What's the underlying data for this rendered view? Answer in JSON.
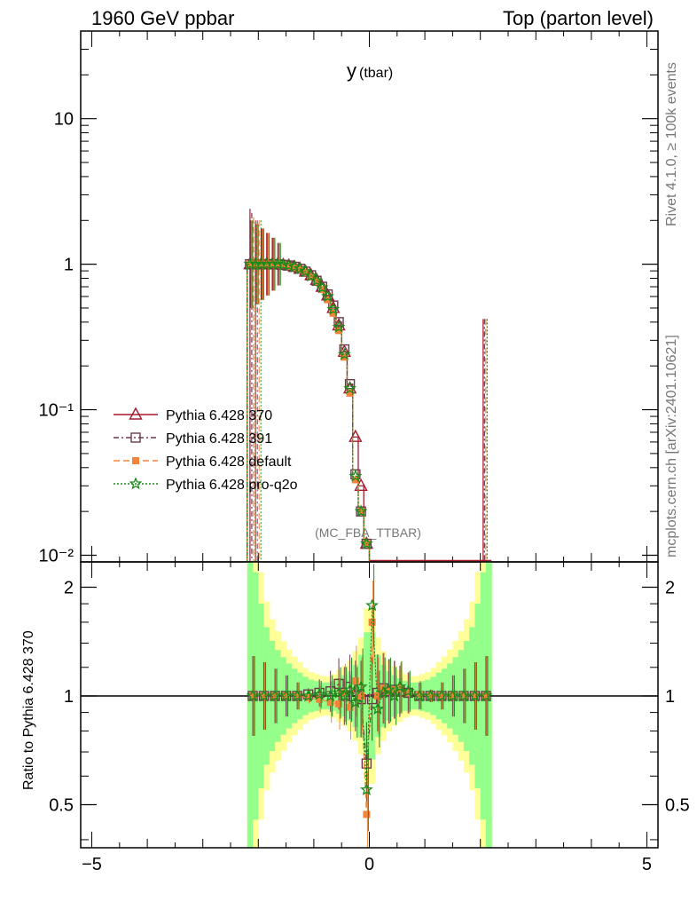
{
  "header": {
    "left": "1960 GeV ppbar",
    "right": "Top (parton level)"
  },
  "side_labels": {
    "rivet": "Rivet 4.1.0, ≥ 100k events",
    "mcplots": "mcplots.cern.ch [arXiv:2401.10621]"
  },
  "chart_data": [
    {
      "type": "line",
      "panel": "main",
      "title": "y",
      "title_suffix": "(tbar)",
      "analysis_tag": "(MC_FBA_TTBAR)",
      "xlabel": "",
      "ylabel": "",
      "xlim": [
        -5.2,
        5.2
      ],
      "ylim": [
        0.009,
        40
      ],
      "yscale": "log",
      "ytick_labels": [
        "10",
        "1",
        "10⁻¹",
        "10⁻²"
      ],
      "ytick_values": [
        10,
        1,
        0.1,
        0.01
      ],
      "legend": [
        {
          "name": "Pythia 6.428 370",
          "color": "#a6192e",
          "marker": "triangle-open"
        },
        {
          "name": "Pythia 6.428 391",
          "color": "#6b3a4a",
          "marker": "square-open"
        },
        {
          "name": "Pythia 6.428 default",
          "color": "#f5843a",
          "marker": "square-filled"
        },
        {
          "name": "Pythia 6.428 pro-q2o",
          "color": "#1a8a1a",
          "marker": "star"
        }
      ],
      "x": [
        -2.15,
        -2.05,
        -1.95,
        -1.85,
        -1.75,
        -1.65,
        -1.55,
        -1.45,
        -1.35,
        -1.25,
        -1.15,
        -1.05,
        -0.95,
        -0.85,
        -0.75,
        -0.65,
        -0.55,
        -0.45,
        -0.35,
        -0.25,
        -0.15,
        -0.05
      ],
      "series": [
        {
          "name": "Pythia 6.428 370",
          "values": [
            1.0,
            1.0,
            1.0,
            1.0,
            1.0,
            1.0,
            0.99,
            0.98,
            0.96,
            0.93,
            0.89,
            0.84,
            0.78,
            0.7,
            0.61,
            0.5,
            0.38,
            0.25,
            0.14,
            0.065,
            0.03,
            0.012
          ]
        },
        {
          "name": "Pythia 6.428 391",
          "values": [
            1.0,
            1.0,
            1.0,
            1.0,
            1.0,
            1.0,
            0.99,
            0.98,
            0.96,
            0.93,
            0.89,
            0.84,
            0.77,
            0.7,
            0.62,
            0.52,
            0.4,
            0.26,
            0.15,
            0.036,
            0.02,
            0.012
          ]
        },
        {
          "name": "Pythia 6.428 default",
          "values": [
            1.0,
            1.0,
            1.0,
            1.0,
            1.0,
            1.0,
            0.99,
            0.97,
            0.95,
            0.92,
            0.88,
            0.82,
            0.76,
            0.67,
            0.57,
            0.46,
            0.35,
            0.23,
            0.13,
            0.033,
            0.02,
            0.012
          ]
        },
        {
          "name": "Pythia 6.428 pro-q2o",
          "values": [
            1.0,
            1.0,
            1.0,
            1.0,
            1.0,
            1.0,
            0.99,
            0.98,
            0.96,
            0.93,
            0.89,
            0.83,
            0.77,
            0.69,
            0.6,
            0.49,
            0.37,
            0.24,
            0.14,
            0.035,
            0.02,
            0.012
          ]
        }
      ],
      "spike_x": 2.05,
      "spike_y": 0.42
    },
    {
      "type": "line",
      "panel": "ratio",
      "ylabel": "Ratio to Pythia 6.428 370",
      "xlim": [
        -5.2,
        5.2
      ],
      "ylim": [
        0.38,
        2.35
      ],
      "yscale": "log",
      "ytick_values": [
        2,
        1,
        0.5
      ],
      "ytick_labels": [
        "2",
        "1",
        "0.5"
      ],
      "xtick_values": [
        -5,
        0,
        5
      ],
      "xtick_labels": [
        "−5",
        "0",
        "5"
      ],
      "x": [
        -2.1,
        -1.9,
        -1.7,
        -1.5,
        -1.3,
        -1.1,
        -0.9,
        -0.7,
        -0.55,
        -0.45,
        -0.35,
        -0.25,
        -0.15,
        -0.05,
        0.05,
        0.15,
        0.25,
        0.35,
        0.45,
        0.55,
        0.7,
        0.9,
        1.1,
        1.3,
        1.5,
        1.7,
        1.9,
        2.1
      ],
      "series": [
        {
          "name": "Pythia 6.428 391",
          "values": [
            1.0,
            1.0,
            1.0,
            1.0,
            1.0,
            1.01,
            1.02,
            1.03,
            1.08,
            1.0,
            1.06,
            1.0,
            0.98,
            0.65,
            0.98,
            1.02,
            1.05,
            1.03,
            1.04,
            1.03,
            1.02,
            1.0,
            1.0,
            1.0,
            1.0,
            1.0,
            1.0,
            1.0
          ]
        },
        {
          "name": "Pythia 6.428 default",
          "values": [
            1.0,
            1.0,
            1.0,
            1.0,
            1.0,
            0.99,
            0.98,
            0.96,
            0.95,
            1.02,
            0.93,
            1.1,
            1.0,
            0.47,
            1.6,
            1.0,
            1.05,
            1.03,
            1.04,
            1.05,
            1.02,
            1.01,
            1.0,
            1.0,
            1.0,
            1.0,
            1.0,
            1.0
          ]
        },
        {
          "name": "Pythia 6.428 pro-q2o",
          "values": [
            1.0,
            1.0,
            1.0,
            1.0,
            1.0,
            1.0,
            1.01,
            1.0,
            1.02,
            1.0,
            1.04,
            0.96,
            1.06,
            0.55,
            1.78,
            0.92,
            1.02,
            1.04,
            1.0,
            1.06,
            1.03,
            1.0,
            1.0,
            1.0,
            1.0,
            1.0,
            1.0,
            1.0
          ]
        }
      ],
      "band_x": [
        -2.15,
        -2.05,
        -1.95,
        -1.85,
        -1.75,
        -1.65,
        -1.55,
        -1.45,
        -1.35,
        -1.25,
        -1.15,
        -1.05,
        -0.95,
        -0.85,
        -0.75,
        -0.65,
        -0.55,
        -0.45,
        -0.35,
        -0.25,
        -0.15,
        -0.05,
        0.05,
        0.15,
        0.25,
        0.35,
        0.45,
        0.55,
        0.65,
        0.75,
        0.85,
        0.95,
        1.05,
        1.15,
        1.25,
        1.35,
        1.45,
        1.55,
        1.65,
        1.75,
        1.85,
        1.95,
        2.05,
        2.15
      ],
      "band_halfwidth": [
        2.4,
        1.2,
        0.8,
        0.55,
        0.42,
        0.34,
        0.28,
        0.23,
        0.19,
        0.16,
        0.13,
        0.11,
        0.1,
        0.09,
        0.09,
        0.1,
        0.12,
        0.14,
        0.17,
        0.22,
        0.3,
        0.5,
        0.5,
        0.3,
        0.22,
        0.17,
        0.14,
        0.12,
        0.1,
        0.09,
        0.09,
        0.1,
        0.11,
        0.13,
        0.16,
        0.19,
        0.23,
        0.28,
        0.34,
        0.42,
        0.55,
        0.8,
        1.2,
        2.4
      ]
    }
  ]
}
